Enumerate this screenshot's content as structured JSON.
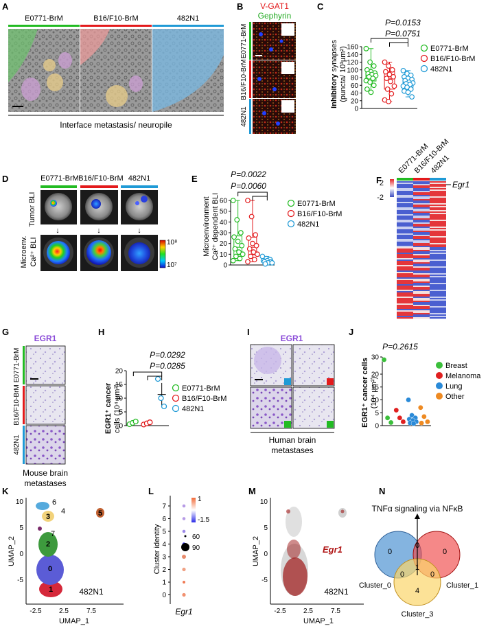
{
  "panels": {
    "A": {
      "letter": "A",
      "groups": [
        "E0771-BrM",
        "B16/F10-BrM",
        "482N1"
      ],
      "caption": "Interface metastasis/ neuropile"
    },
    "B": {
      "letter": "B",
      "stain1": "V-GAT1",
      "stain2": "Gephyrin",
      "groups": [
        "E0771-BrM",
        "B16/F10-BrM",
        "482N1"
      ]
    },
    "C": {
      "letter": "C",
      "p1": "P=0.0153",
      "p2": "P=0.0751",
      "ylabel_bold": "Inhibitory",
      "ylabel_rest": " synapses",
      "ylabel2": "(puncta/ 10³µm²)",
      "legend": [
        "E0771-BrM",
        "B16/F10-BrM",
        "482N1"
      ]
    },
    "D": {
      "letter": "D",
      "groups": [
        "E0771-BrM",
        "B16/F10-BrM",
        "482N1"
      ],
      "row1": "Tumor BLI",
      "row2a": "Microenv.",
      "row2b": "Ca²⁺ BLI",
      "scale_max": "10⁸",
      "scale_min": "10⁷"
    },
    "E": {
      "letter": "E",
      "p1": "P=0.0022",
      "p2": "P=0.0060",
      "ylabel1": "Microenvironment",
      "ylabel2": "Ca²⁺ dependent BLI",
      "legend": [
        "E0771-BrM",
        "B16/F10-BrM",
        "482N1"
      ]
    },
    "F": {
      "letter": "F",
      "groups": [
        "E0771-BrM",
        "B16/F10-BrM",
        "482N1"
      ],
      "scale_max": "2",
      "scale_min": "-2",
      "gene": "Egr1"
    },
    "G": {
      "letter": "G",
      "title": "EGR1",
      "groups": [
        "E0771-BrM",
        "B16/F10-BrM",
        "482N1"
      ],
      "caption1": "Mouse brain",
      "caption2": "metastases"
    },
    "H": {
      "letter": "H",
      "p1": "P=0.0292",
      "p2": "P=0.0285",
      "ylabel1": "EGR1⁺ cancer",
      "ylabel2": "cells (10⁴ µm²)",
      "legend": [
        "E0771-BrM",
        "B16/F10-BrM",
        "482N1"
      ]
    },
    "I": {
      "letter": "I",
      "title": "EGR1",
      "caption1": "Human brain",
      "caption2": "metastases"
    },
    "J": {
      "letter": "J",
      "p": "P=0.2615",
      "ylabel1": "EGR1⁺ cancer cells",
      "ylabel2": "(10⁴ µm²)",
      "legend": [
        "Breast",
        "Melanoma",
        "Lung",
        "Other"
      ]
    },
    "K": {
      "letter": "K",
      "xlabel": "UMAP_1",
      "ylabel": "UMAP_2",
      "label": "482N1",
      "clusters": [
        "0",
        "1",
        "2",
        "3",
        "4",
        "5",
        "6",
        "7"
      ]
    },
    "L": {
      "letter": "L",
      "ylabel": "Cluster identity",
      "xlabel": "Egr1",
      "color_max": "1",
      "color_min": "-1.5",
      "size1": "60",
      "size2": "90"
    },
    "M": {
      "letter": "M",
      "xlabel": "UMAP_1",
      "ylabel": "UMAP_2",
      "label": "482N1",
      "gene": "Egr1"
    },
    "N": {
      "letter": "N",
      "title": "TNFα signaling via NFκB",
      "sets": [
        "Cluster_0",
        "Cluster_1",
        "Cluster_3"
      ],
      "counts": [
        "0",
        "0",
        "0",
        "1",
        "0",
        "0",
        "4"
      ]
    }
  },
  "colors": {
    "green": "#22bb22",
    "red": "#e31a1c",
    "blue": "#1f9ad6",
    "orange": "#f08a1c",
    "breast": "#3bbf3b",
    "melanoma": "#e02020",
    "lung": "#2a8ad8",
    "other": "#ee8a22"
  },
  "chart_data": [
    {
      "type": "box",
      "panel": "C",
      "categories": [
        "E0771-BrM",
        "B16/F10-BrM",
        "482N1"
      ],
      "ylim": [
        0,
        160
      ],
      "yticks": [
        0,
        20,
        40,
        60,
        80,
        100,
        120,
        140,
        160
      ],
      "series": [
        {
          "name": "E0771-BrM",
          "values": [
            155,
            120,
            110,
            100,
            95,
            92,
            90,
            88,
            85,
            82,
            78,
            72,
            68,
            60,
            50,
            42
          ]
        },
        {
          "name": "B16/F10-BrM",
          "values": [
            120,
            110,
            100,
            95,
            88,
            82,
            78,
            70,
            58,
            50,
            38,
            22,
            18
          ]
        },
        {
          "name": "482N1",
          "values": [
            98,
            90,
            86,
            82,
            78,
            75,
            72,
            68,
            66,
            64,
            62,
            58,
            55,
            50,
            45,
            42,
            30
          ]
        }
      ]
    },
    {
      "type": "box",
      "panel": "E",
      "categories": [
        "E0771-BrM",
        "B16/F10-BrM",
        "482N1"
      ],
      "ylim": [
        0,
        60
      ],
      "yticks": [
        0,
        10,
        20,
        30,
        40,
        50,
        60
      ],
      "series": [
        {
          "name": "E0771-BrM",
          "values": [
            60,
            42,
            30,
            26,
            22,
            18,
            15,
            12,
            10,
            8,
            6,
            4
          ]
        },
        {
          "name": "B16/F10-BrM",
          "values": [
            60,
            45,
            28,
            25,
            20,
            18,
            15,
            12,
            10,
            8,
            5,
            3
          ]
        },
        {
          "name": "482N1",
          "values": [
            8,
            6,
            5,
            4,
            4,
            3,
            3,
            2,
            2,
            1
          ]
        }
      ]
    },
    {
      "type": "scatter",
      "panel": "H",
      "categories": [
        "E0771-BrM",
        "B16/F10-BrM",
        "482N1"
      ],
      "ylim": [
        0,
        20
      ],
      "yticks": [
        0,
        5,
        10,
        15,
        20
      ],
      "series": [
        {
          "name": "E0771-BrM",
          "values": [
            0.5,
            1.0,
            1.5
          ]
        },
        {
          "name": "B16/F10-BrM",
          "values": [
            0.4,
            0.8,
            1.2
          ]
        },
        {
          "name": "482N1",
          "values": [
            17,
            10,
            7
          ]
        }
      ]
    },
    {
      "type": "scatter",
      "panel": "J",
      "categories": [
        "Breast",
        "Melanoma",
        "Lung",
        "Other"
      ],
      "ylim": [
        0,
        30
      ],
      "yticks": [
        0,
        5,
        10,
        15,
        20,
        30
      ],
      "series": [
        {
          "name": "Breast",
          "values": [
            28,
            3,
            1.2
          ]
        },
        {
          "name": "Melanoma",
          "values": [
            6,
            3,
            1.5
          ]
        },
        {
          "name": "Lung",
          "values": [
            10,
            4,
            3,
            2.5,
            2,
            1.5,
            1,
            0.8
          ]
        },
        {
          "name": "Other",
          "values": [
            7,
            3.5,
            1.5,
            1
          ]
        }
      ]
    }
  ]
}
